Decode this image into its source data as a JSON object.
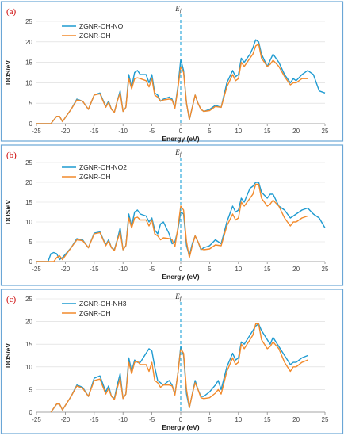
{
  "colors": {
    "series_a": "#1f9bd1",
    "series_b": "#f28a2c",
    "fermi_line": "#1ea3d8",
    "panel_border": "#6aa6d6",
    "panel_label": "#cc0000"
  },
  "fermi_label": "Ef",
  "chart_data": [
    {
      "type": "line",
      "panel_label": "(a)",
      "xlabel": "Energy (eV)",
      "ylabel": "DOS/eV",
      "xlim": [
        -25,
        25
      ],
      "ylim": [
        0,
        25
      ],
      "xticks": [
        -25,
        -20,
        -15,
        -10,
        -5,
        0,
        5,
        10,
        15,
        20,
        25
      ],
      "yticks": [
        0,
        5,
        10,
        15,
        20,
        25
      ],
      "grid": "horizontal",
      "legend": "top-left",
      "series": [
        {
          "name": "ZGNR-OH-NO",
          "color": "#1f9bd1",
          "x": [
            -25,
            -22.5,
            -21.5,
            -21,
            -20.5,
            -19,
            -18,
            -17,
            -16,
            -15,
            -14,
            -13,
            -12.5,
            -12,
            -11.5,
            -11,
            -10.5,
            -10,
            -9.5,
            -9,
            -8.5,
            -8,
            -7.5,
            -7,
            -6,
            -5.5,
            -5,
            -4.5,
            -4,
            -3.5,
            -3,
            -2,
            -1.5,
            -1,
            -0.5,
            0,
            0.5,
            1,
            1.5,
            2,
            2.5,
            3,
            3.5,
            4,
            5,
            6,
            7,
            8,
            9,
            9.5,
            10,
            10.5,
            11,
            12,
            12.5,
            13,
            13.5,
            14,
            15,
            15.5,
            16,
            17,
            18,
            19,
            19.5,
            20,
            21,
            22,
            23,
            24,
            25
          ],
          "y": [
            0,
            0,
            1.8,
            1.8,
            0.5,
            3.5,
            6,
            5.5,
            3.5,
            7,
            7.5,
            4.2,
            5.5,
            3.5,
            2.8,
            5.5,
            8,
            3,
            4,
            12,
            9,
            12.5,
            13,
            12,
            12,
            10,
            12,
            7.5,
            7,
            5.5,
            6,
            6.5,
            6,
            4,
            9,
            15.7,
            13,
            5,
            1,
            4,
            7,
            5,
            3.5,
            3,
            3.5,
            4.5,
            4,
            10,
            13,
            11.5,
            12,
            16,
            15,
            17,
            18.5,
            20.5,
            20,
            17,
            14,
            15.5,
            17,
            15,
            12,
            10,
            11,
            10.5,
            12,
            13,
            12,
            8,
            7.5
          ]
        },
        {
          "name": "ZGNR-OH",
          "color": "#f28a2c",
          "x": [
            -25,
            -22.5,
            -21.5,
            -21,
            -20.5,
            -19,
            -18,
            -17,
            -16,
            -15,
            -14,
            -13,
            -12.5,
            -12,
            -11.5,
            -11,
            -10.5,
            -10,
            -9.5,
            -9,
            -8.5,
            -8,
            -7.5,
            -7,
            -6,
            -5.5,
            -5,
            -4.5,
            -4,
            -3.5,
            -3,
            -2,
            -1.5,
            -1,
            -0.5,
            0,
            0.5,
            1,
            1.5,
            2,
            2.5,
            3,
            3.5,
            4,
            5,
            6,
            7,
            8,
            9,
            9.5,
            10,
            10.5,
            11,
            12,
            12.5,
            13,
            13.5,
            14,
            15,
            15.5,
            16,
            17,
            18,
            19,
            19.5,
            20,
            21,
            22
          ],
          "y": [
            0,
            0,
            1.8,
            1.8,
            0.5,
            3.5,
            5.8,
            5.5,
            3.5,
            7,
            7.3,
            4,
            5.2,
            3.5,
            2.8,
            5.5,
            7.5,
            3,
            4,
            11,
            8.5,
            11,
            11.2,
            11,
            10.5,
            9,
            11,
            7,
            6.5,
            5.5,
            5.8,
            6,
            5.8,
            3.8,
            8.5,
            14,
            12.5,
            5,
            1,
            4,
            7,
            5,
            3.5,
            3,
            3.2,
            4.2,
            4,
            9,
            12,
            10.5,
            11,
            15,
            14,
            16,
            17,
            19,
            19.5,
            16,
            14,
            14.5,
            15.5,
            14,
            11.5,
            9.5,
            10,
            10,
            11,
            11
          ]
        }
      ]
    },
    {
      "type": "line",
      "panel_label": "(b)",
      "xlabel": "Energy (eV)",
      "ylabel": "DOS/eV",
      "xlim": [
        -25,
        25
      ],
      "ylim": [
        0,
        25
      ],
      "xticks": [
        -25,
        -20,
        -15,
        -10,
        -5,
        0,
        5,
        10,
        15,
        20,
        25
      ],
      "yticks": [
        0,
        5,
        10,
        15,
        20,
        25
      ],
      "grid": "horizontal",
      "legend": "top-left",
      "series": [
        {
          "name": "ZGNR-OH-NO2",
          "color": "#1f9bd1",
          "x": [
            -25,
            -23,
            -22.5,
            -22,
            -21.5,
            -21,
            -20.5,
            -19,
            -18,
            -17,
            -16,
            -15,
            -14,
            -13,
            -12.5,
            -12,
            -11.5,
            -11,
            -10.5,
            -10,
            -9.5,
            -9,
            -8.5,
            -8,
            -7.5,
            -7,
            -6,
            -5.5,
            -5,
            -4.5,
            -4,
            -3.5,
            -3,
            -2,
            -1.5,
            -1,
            -0.5,
            0,
            0.5,
            1,
            1.5,
            2,
            2.5,
            3,
            3.5,
            4,
            5,
            6,
            7,
            8,
            9,
            9.5,
            10,
            10.5,
            11,
            12,
            12.5,
            13,
            13.5,
            14,
            15,
            15.5,
            16,
            17,
            18,
            19,
            19.5,
            20,
            21,
            22,
            23,
            24,
            25
          ],
          "y": [
            0,
            0,
            2,
            2.3,
            2,
            0.5,
            1,
            3.5,
            5.8,
            5.5,
            3.5,
            7.2,
            7.5,
            4.2,
            5.5,
            3.5,
            3,
            5.5,
            8.5,
            3,
            4,
            12,
            9,
            12.5,
            13,
            12,
            11.5,
            10,
            11,
            8,
            7,
            9.5,
            10,
            7,
            4.5,
            5,
            8,
            12.5,
            12,
            4,
            1.5,
            4.5,
            6.5,
            5,
            3,
            3.5,
            4,
            5.5,
            4.5,
            10,
            14,
            12.5,
            13,
            16,
            15,
            18.5,
            19,
            20,
            20,
            17.5,
            16,
            17,
            17,
            14,
            13,
            11,
            11.5,
            12,
            13,
            13.5,
            12,
            11,
            8.5
          ]
        },
        {
          "name": "ZGNR-OH",
          "color": "#f28a2c",
          "x": [
            -25,
            -23,
            -22.5,
            -22,
            -21.5,
            -21,
            -20.5,
            -19,
            -18,
            -17,
            -16,
            -15,
            -14,
            -13,
            -12.5,
            -12,
            -11.5,
            -11,
            -10.5,
            -10,
            -9.5,
            -9,
            -8.5,
            -8,
            -7.5,
            -7,
            -6,
            -5.5,
            -5,
            -4.5,
            -4,
            -3.5,
            -3,
            -2,
            -1.5,
            -1,
            -0.5,
            0,
            0.5,
            1,
            1.5,
            2,
            2.5,
            3,
            3.5,
            4,
            5,
            6,
            7,
            8,
            9,
            9.5,
            10,
            10.5,
            11,
            12,
            12.5,
            13,
            13.5,
            14,
            15,
            15.5,
            16,
            17,
            18,
            19,
            19.5,
            20,
            21,
            22
          ],
          "y": [
            0,
            0,
            0,
            0,
            1,
            1.5,
            0.5,
            3.5,
            5.5,
            5.3,
            3.5,
            7,
            7.3,
            4,
            5.2,
            3.5,
            2.8,
            5.3,
            7.5,
            3,
            4,
            11,
            8.5,
            11,
            11.2,
            10.5,
            10.5,
            9,
            10.5,
            7,
            6.5,
            5.5,
            6,
            5.8,
            5.5,
            3.8,
            8.5,
            14,
            13,
            5,
            1,
            4,
            6.5,
            5,
            3.2,
            3,
            3.2,
            4.2,
            4,
            9,
            12,
            10.5,
            11,
            15,
            14,
            16,
            17,
            19.5,
            19.5,
            16,
            14,
            14.5,
            15.5,
            14,
            11,
            9,
            10,
            10,
            11,
            11.5
          ]
        }
      ]
    },
    {
      "type": "line",
      "panel_label": "(c)",
      "xlabel": "Energy (eV)",
      "ylabel": "DOS/eV",
      "xlim": [
        -25,
        25
      ],
      "ylim": [
        0,
        25
      ],
      "xticks": [
        -25,
        -20,
        -15,
        -10,
        -5,
        0,
        5,
        10,
        15,
        20,
        25
      ],
      "yticks": [
        0,
        5,
        10,
        15,
        20,
        25
      ],
      "grid": "horizontal",
      "legend": "top-left",
      "series": [
        {
          "name": "ZGNR-OH-NH3",
          "color": "#1f9bd1",
          "x": [
            -22.5,
            -21.5,
            -21,
            -20.5,
            -19,
            -18,
            -17,
            -16,
            -15,
            -14,
            -13,
            -12.5,
            -12,
            -11.5,
            -11,
            -10.5,
            -10,
            -9.5,
            -9,
            -8.5,
            -8,
            -7.5,
            -7,
            -6,
            -5.5,
            -5,
            -4.5,
            -4,
            -3.5,
            -3,
            -2,
            -1.5,
            -1,
            -0.5,
            0,
            0.5,
            1,
            1.5,
            2,
            2.5,
            3,
            3.5,
            4,
            5,
            6,
            6.5,
            7,
            8,
            9,
            9.5,
            10,
            10.5,
            11,
            12,
            12.5,
            13,
            13.5,
            14,
            15,
            15.5,
            16,
            17,
            18,
            19,
            19.5,
            20,
            21,
            22
          ],
          "y": [
            0,
            1.8,
            1.8,
            0.5,
            3.5,
            6,
            5.5,
            3.5,
            7.5,
            8,
            4.5,
            5.8,
            3.5,
            3,
            6,
            8.5,
            3,
            4,
            12,
            9,
            11.5,
            11,
            11,
            13,
            14,
            13.5,
            10,
            7,
            6.5,
            6,
            7,
            6,
            4,
            8.5,
            14.5,
            12.5,
            4,
            1,
            4,
            7,
            5,
            3.5,
            3.5,
            4.5,
            6,
            7,
            5,
            10,
            13,
            11.5,
            12,
            15.5,
            15,
            17,
            18,
            19,
            19.5,
            18,
            16,
            15,
            16.5,
            14.5,
            12.5,
            10.5,
            11,
            11,
            12,
            12.5
          ]
        },
        {
          "name": "ZGNR-OH",
          "color": "#f28a2c",
          "x": [
            -22.5,
            -21.5,
            -21,
            -20.5,
            -19,
            -18,
            -17,
            -16,
            -15,
            -14,
            -13,
            -12.5,
            -12,
            -11.5,
            -11,
            -10.5,
            -10,
            -9.5,
            -9,
            -8.5,
            -8,
            -7.5,
            -7,
            -6,
            -5.5,
            -5,
            -4.5,
            -4,
            -3.5,
            -3,
            -2,
            -1.5,
            -1,
            -0.5,
            0,
            0.5,
            1,
            1.5,
            2,
            2.5,
            3,
            3.5,
            4,
            5,
            6,
            6.5,
            7,
            8,
            9,
            9.5,
            10,
            10.5,
            11,
            12,
            12.5,
            13,
            13.5,
            14,
            15,
            15.5,
            16,
            17,
            18,
            19,
            19.5,
            20,
            21,
            22
          ],
          "y": [
            0,
            1.8,
            1.8,
            0.5,
            3.5,
            5.8,
            5.3,
            3.5,
            7,
            7.3,
            4,
            5.2,
            3.5,
            2.8,
            5.3,
            7.5,
            3,
            4,
            11,
            8.5,
            11,
            11.2,
            10.5,
            10.5,
            9,
            11,
            7,
            6.5,
            5.5,
            6,
            6,
            5.8,
            3.8,
            8.5,
            14,
            13,
            5,
            1,
            4,
            6.5,
            5,
            3.2,
            3,
            3.2,
            4.2,
            5,
            4,
            9,
            12,
            10.5,
            11,
            15,
            14,
            16,
            17,
            19.5,
            19.5,
            16,
            14,
            14.5,
            15.5,
            14,
            11,
            9,
            10,
            10,
            11,
            11.5
          ]
        }
      ]
    }
  ]
}
